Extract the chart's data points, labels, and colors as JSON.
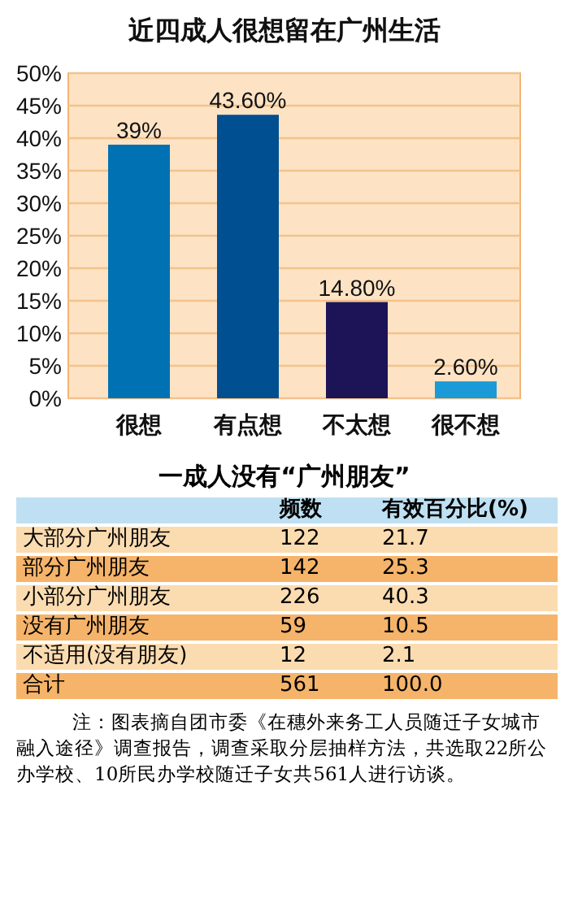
{
  "chart_data": [
    {
      "type": "bar",
      "title": "近四成人很想留在广州生活",
      "categories": [
        "很想",
        "有点想",
        "不太想",
        "很不想"
      ],
      "values": [
        39,
        43.6,
        14.8,
        2.6
      ],
      "colors": [
        "#0071b3",
        "#004f91",
        "#1d1457",
        "#1a9ad6"
      ],
      "value_labels": [
        "39%",
        "43.60%",
        "14.80%",
        "2.60%"
      ],
      "ylim": [
        0,
        50
      ],
      "yticks": [
        {
          "value": 0,
          "label": "0%"
        },
        {
          "value": 5,
          "label": "5%"
        },
        {
          "value": 10,
          "label": "10%"
        },
        {
          "value": 15,
          "label": "15%"
        },
        {
          "value": 20,
          "label": "20%"
        },
        {
          "value": 25,
          "label": "25%"
        },
        {
          "value": 30,
          "label": "30%"
        },
        {
          "value": 35,
          "label": "35%"
        },
        {
          "value": 40,
          "label": "40%"
        },
        {
          "value": 45,
          "label": "45%"
        },
        {
          "value": 50,
          "label": "50%"
        }
      ],
      "grid": "y"
    },
    {
      "type": "other",
      "title": "一成人没有“广州朋友”",
      "categories": [
        "大部分广州朋友",
        "部分广州朋友",
        "小部分广州朋友",
        "没有广州朋友",
        "不适用(没有朋友)",
        "合计"
      ],
      "series": [
        {
          "name": "频数",
          "values": [
            122,
            142,
            226,
            59,
            12,
            561
          ],
          "colors": [
            "#fbdcb0",
            "#f5b46a",
            "#fbdcb0",
            "#f5b46a",
            "#fbdcb0",
            "#f5b46a"
          ]
        },
        {
          "name": "有效百分比(%)",
          "values": [
            21.7,
            25.3,
            40.3,
            10.5,
            2.1,
            100.0
          ],
          "value_labels": [
            "21.7",
            "25.3",
            "40.3",
            "10.5",
            "2.1",
            "100.0"
          ],
          "colors": [
            "#fbdcb0",
            "#f5b46a",
            "#fbdcb0",
            "#f5b46a",
            "#fbdcb0",
            "#f5b46a"
          ]
        }
      ],
      "data_labels": true,
      "annotations": [
        "注：图表摘自团市委《在穗外来务工人员随迁子女城市融入途径》调查报告，调查采取分层抽样方法，共选取22所公办学校、10所民办学校随迁子女共561人进行访谈。"
      ]
    }
  ]
}
